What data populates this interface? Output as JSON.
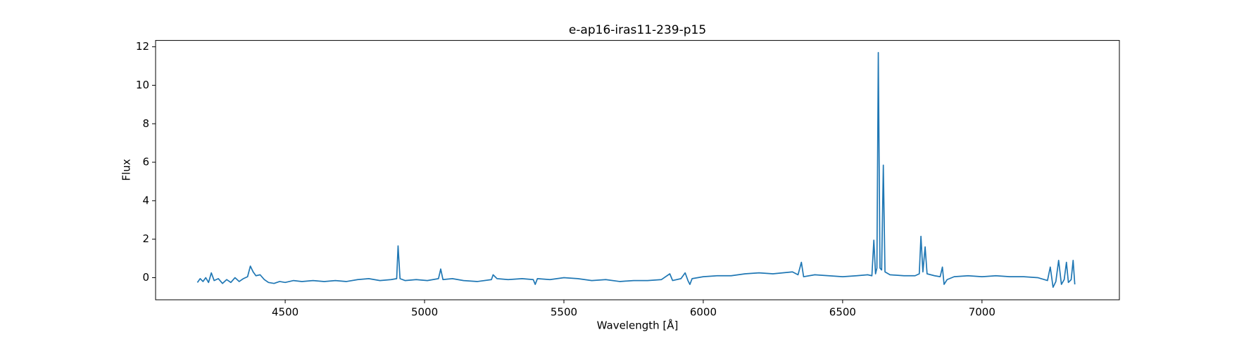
{
  "chart_data": {
    "type": "line",
    "title": "e-ap16-iras11-239-p15",
    "x_label": "Wavelength [Å]",
    "y_label": "Flux",
    "x": [
      4185,
      4195,
      4205,
      4215,
      4225,
      4235,
      4245,
      4260,
      4275,
      4290,
      4305,
      4320,
      4335,
      4350,
      4365,
      4375,
      4385,
      4395,
      4410,
      4425,
      4440,
      4460,
      4480,
      4500,
      4530,
      4560,
      4600,
      4640,
      4680,
      4720,
      4760,
      4800,
      4840,
      4880,
      4900,
      4905,
      4912,
      4930,
      4970,
      5010,
      5050,
      5058,
      5066,
      5100,
      5140,
      5190,
      5240,
      5246,
      5260,
      5300,
      5350,
      5390,
      5397,
      5405,
      5450,
      5500,
      5550,
      5600,
      5650,
      5700,
      5750,
      5800,
      5850,
      5880,
      5890,
      5920,
      5935,
      5945,
      5952,
      5960,
      6000,
      6050,
      6100,
      6150,
      6200,
      6250,
      6320,
      6340,
      6352,
      6360,
      6400,
      6450,
      6500,
      6550,
      6590,
      6605,
      6612,
      6618,
      6623,
      6628,
      6634,
      6640,
      6646,
      6652,
      6670,
      6720,
      6760,
      6775,
      6781,
      6788,
      6796,
      6803,
      6830,
      6850,
      6858,
      6864,
      6875,
      6900,
      6950,
      7000,
      7050,
      7100,
      7150,
      7200,
      7235,
      7245,
      7255,
      7265,
      7275,
      7285,
      7295,
      7303,
      7310,
      7320,
      7327,
      7333
    ],
    "series": [
      {
        "name": "Flux",
        "color": "#1f77b4",
        "values": [
          -0.25,
          -0.05,
          -0.2,
          0.0,
          -0.25,
          0.25,
          -0.15,
          -0.05,
          -0.3,
          -0.1,
          -0.25,
          0.0,
          -0.2,
          -0.05,
          0.05,
          0.6,
          0.3,
          0.1,
          0.15,
          -0.1,
          -0.25,
          -0.3,
          -0.2,
          -0.25,
          -0.15,
          -0.2,
          -0.15,
          -0.2,
          -0.15,
          -0.2,
          -0.1,
          -0.05,
          -0.15,
          -0.1,
          -0.05,
          1.65,
          -0.05,
          -0.15,
          -0.1,
          -0.15,
          -0.05,
          0.45,
          -0.1,
          -0.05,
          -0.15,
          -0.2,
          -0.1,
          0.15,
          -0.05,
          -0.1,
          -0.05,
          -0.1,
          -0.35,
          -0.05,
          -0.1,
          0.0,
          -0.05,
          -0.15,
          -0.1,
          -0.2,
          -0.15,
          -0.15,
          -0.1,
          0.2,
          -0.15,
          -0.05,
          0.25,
          -0.15,
          -0.35,
          -0.05,
          0.05,
          0.1,
          0.1,
          0.2,
          0.25,
          0.2,
          0.3,
          0.15,
          0.8,
          0.05,
          0.15,
          0.1,
          0.05,
          0.1,
          0.15,
          0.1,
          1.95,
          0.2,
          0.5,
          11.7,
          0.5,
          0.4,
          5.85,
          0.3,
          0.15,
          0.1,
          0.1,
          0.2,
          2.15,
          0.3,
          1.6,
          0.2,
          0.1,
          0.05,
          0.55,
          -0.35,
          -0.1,
          0.05,
          0.1,
          0.05,
          0.1,
          0.05,
          0.05,
          0.0,
          -0.15,
          0.55,
          -0.5,
          -0.2,
          0.9,
          -0.35,
          -0.1,
          0.8,
          -0.25,
          -0.1,
          0.9,
          -0.35
        ]
      }
    ],
    "xlim": [
      4035,
      7493
    ],
    "ylim": [
      -1.15,
      12.33
    ],
    "xticks": [
      4500,
      5000,
      5500,
      6000,
      6500,
      7000
    ],
    "yticks": [
      0,
      2,
      4,
      6,
      8,
      10,
      12
    ],
    "grid": false
  }
}
